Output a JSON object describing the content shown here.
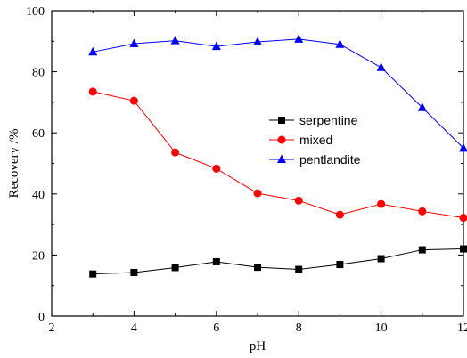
{
  "chart_data": {
    "type": "line",
    "title": "",
    "xlabel": "pH",
    "ylabel": "Recovery /%",
    "xlim": [
      2,
      12
    ],
    "ylim": [
      0,
      100
    ],
    "x_ticks": [
      2,
      4,
      6,
      8,
      10,
      12
    ],
    "y_ticks": [
      0,
      20,
      40,
      60,
      80,
      100
    ],
    "x": [
      3,
      4,
      5,
      6,
      7,
      8,
      9,
      10,
      11,
      12
    ],
    "grid": false,
    "legend_position": "center-right",
    "series": [
      {
        "name": "serpentine",
        "color": "#000000",
        "marker": "square",
        "values": [
          13.8,
          14.3,
          15.9,
          17.8,
          16.0,
          15.3,
          16.9,
          18.8,
          21.7,
          22.0
        ]
      },
      {
        "name": "mixed",
        "color": "#ff0000",
        "marker": "circle",
        "values": [
          73.5,
          70.5,
          53.6,
          48.3,
          40.2,
          37.8,
          33.2,
          36.7,
          34.3,
          32.2
        ]
      },
      {
        "name": "pentlandite",
        "color": "#0000ff",
        "marker": "triangle",
        "values": [
          86.5,
          89.2,
          90.2,
          88.3,
          89.8,
          90.7,
          89.0,
          81.4,
          68.3,
          55.0
        ]
      }
    ]
  }
}
